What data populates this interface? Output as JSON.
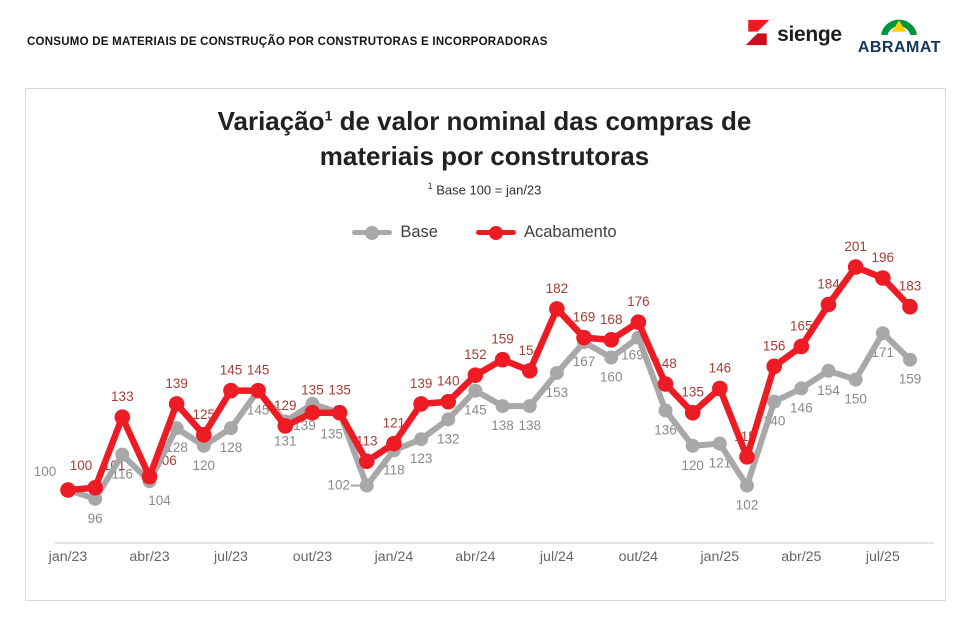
{
  "header": {
    "title": "CONSUMO DE MATERIAIS DE CONSTRUÇÃO POR CONSTRUTORAS E INCORPORADORAS",
    "logos": {
      "sienge": "sienge",
      "abramat": "ABRAMAT"
    }
  },
  "chart": {
    "title_prefix": "Variação",
    "title_sup": "1",
    "title_rest": " de valor nominal das compras de",
    "title_line2": "materiais por construtoras",
    "subtitle_sup": "1",
    "subtitle_text": " Base 100 = jan/23"
  },
  "chart_data": {
    "type": "line",
    "title": "Variação¹ de valor nominal das compras de materiais por construtoras",
    "subtitle": "¹ Base 100 = jan/23",
    "x": [
      "jan/23",
      "fev/23",
      "mar/23",
      "abr/23",
      "mai/23",
      "jun/23",
      "jul/23",
      "ago/23",
      "set/23",
      "out/23",
      "nov/23",
      "dez/23",
      "jan/24",
      "fev/24",
      "mar/24",
      "abr/24",
      "mai/24",
      "jun/24",
      "jul/24",
      "ago/24",
      "set/24",
      "out/24",
      "nov/24",
      "dez/24",
      "jan/25",
      "fev/25",
      "mar/25",
      "abr/25",
      "mai/25",
      "jun/25",
      "jul/25",
      "ago/25"
    ],
    "x_tick_labels": [
      "jan/23",
      "abr/23",
      "jul/23",
      "out/23",
      "jan/24",
      "abr/24",
      "jul/24",
      "out/24",
      "jan/25",
      "abr/25",
      "jul/25"
    ],
    "series": [
      {
        "name": "Base",
        "color": "#a8a8a8",
        "label_color": "#8a8a8a",
        "values": [
          100,
          96,
          116,
          104,
          128,
          120,
          128,
          145,
          131,
          139,
          135,
          102,
          118,
          123,
          132,
          145,
          138,
          138,
          153,
          167,
          160,
          169,
          136,
          120,
          121,
          102,
          140,
          146,
          154,
          150,
          171,
          159
        ]
      },
      {
        "name": "Acabamento",
        "color": "#ed1c24",
        "label_color": "#a53e36",
        "values": [
          100,
          101,
          133,
          106,
          139,
          125,
          145,
          145,
          129,
          135,
          135,
          113,
          121,
          139,
          140,
          152,
          159,
          154,
          182,
          169,
          168,
          176,
          148,
          135,
          146,
          115,
          156,
          165,
          184,
          201,
          196,
          183
        ]
      }
    ],
    "ylim": [
      88,
      215
    ],
    "grid": false,
    "legend_position": "top",
    "axis_line_color": "#dcdcdc",
    "tick_label_color": "#666666"
  }
}
